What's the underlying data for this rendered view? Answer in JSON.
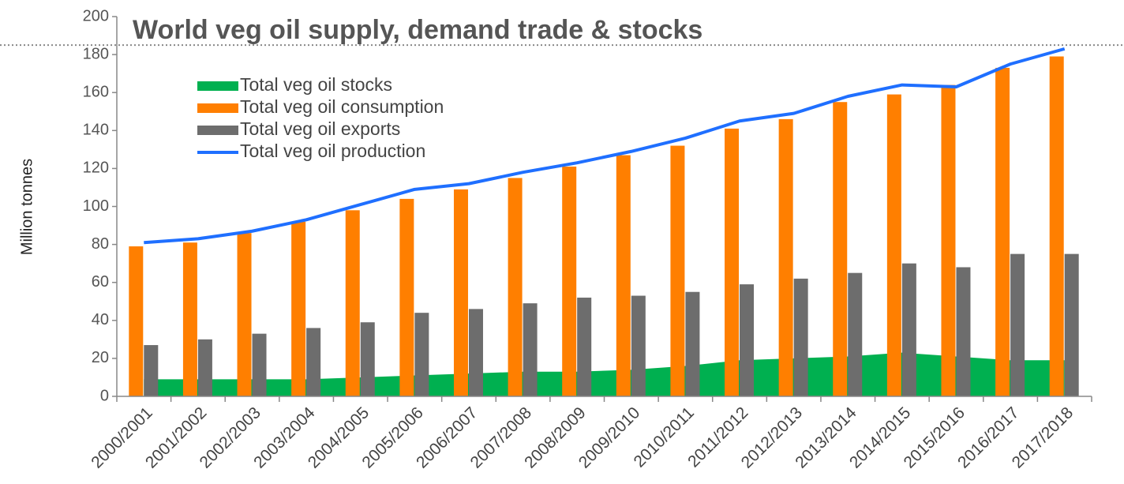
{
  "chart_data": {
    "type": "bar",
    "title": "World veg oil supply, demand trade & stocks",
    "y_label": "Million tonnes",
    "categories": [
      "2000/2001",
      "2001/2002",
      "2002/2003",
      "2003/2004",
      "2004/2005",
      "2005/2006",
      "2006/2007",
      "2007/2008",
      "2008/2009",
      "2009/2010",
      "2010/2011",
      "2011/2012",
      "2012/2013",
      "2013/2014",
      "2014/2015",
      "2015/2016",
      "2016/2017",
      "2017/2018"
    ],
    "series": [
      {
        "name": "Total veg oil stocks",
        "type": "area",
        "color": "#00b050",
        "values": [
          9,
          9,
          9,
          9,
          10,
          11,
          12,
          13,
          13,
          14,
          16,
          19,
          20,
          21,
          23,
          21,
          19,
          19
        ]
      },
      {
        "name": "Total veg oil consumption",
        "type": "bar",
        "color": "#ff7f00",
        "values": [
          79,
          81,
          86,
          92,
          98,
          104,
          109,
          115,
          121,
          127,
          132,
          141,
          146,
          155,
          159,
          164,
          173,
          179
        ]
      },
      {
        "name": "Total veg oil exports",
        "type": "bar",
        "color": "#6d6d6d",
        "values": [
          27,
          30,
          33,
          36,
          39,
          44,
          46,
          49,
          52,
          53,
          55,
          59,
          62,
          65,
          70,
          68,
          75,
          75
        ]
      },
      {
        "name": "Total veg oil production",
        "type": "line",
        "color": "#1f6fff",
        "values": [
          81,
          83,
          87,
          93,
          101,
          109,
          112,
          118,
          123,
          129,
          136,
          145,
          149,
          158,
          164,
          163,
          175,
          183
        ]
      }
    ],
    "reference_line": 185,
    "ylim": [
      0,
      200
    ],
    "yticks": [
      0,
      20,
      40,
      60,
      80,
      100,
      120,
      140,
      160,
      180,
      200
    ],
    "legend": "top-left"
  }
}
